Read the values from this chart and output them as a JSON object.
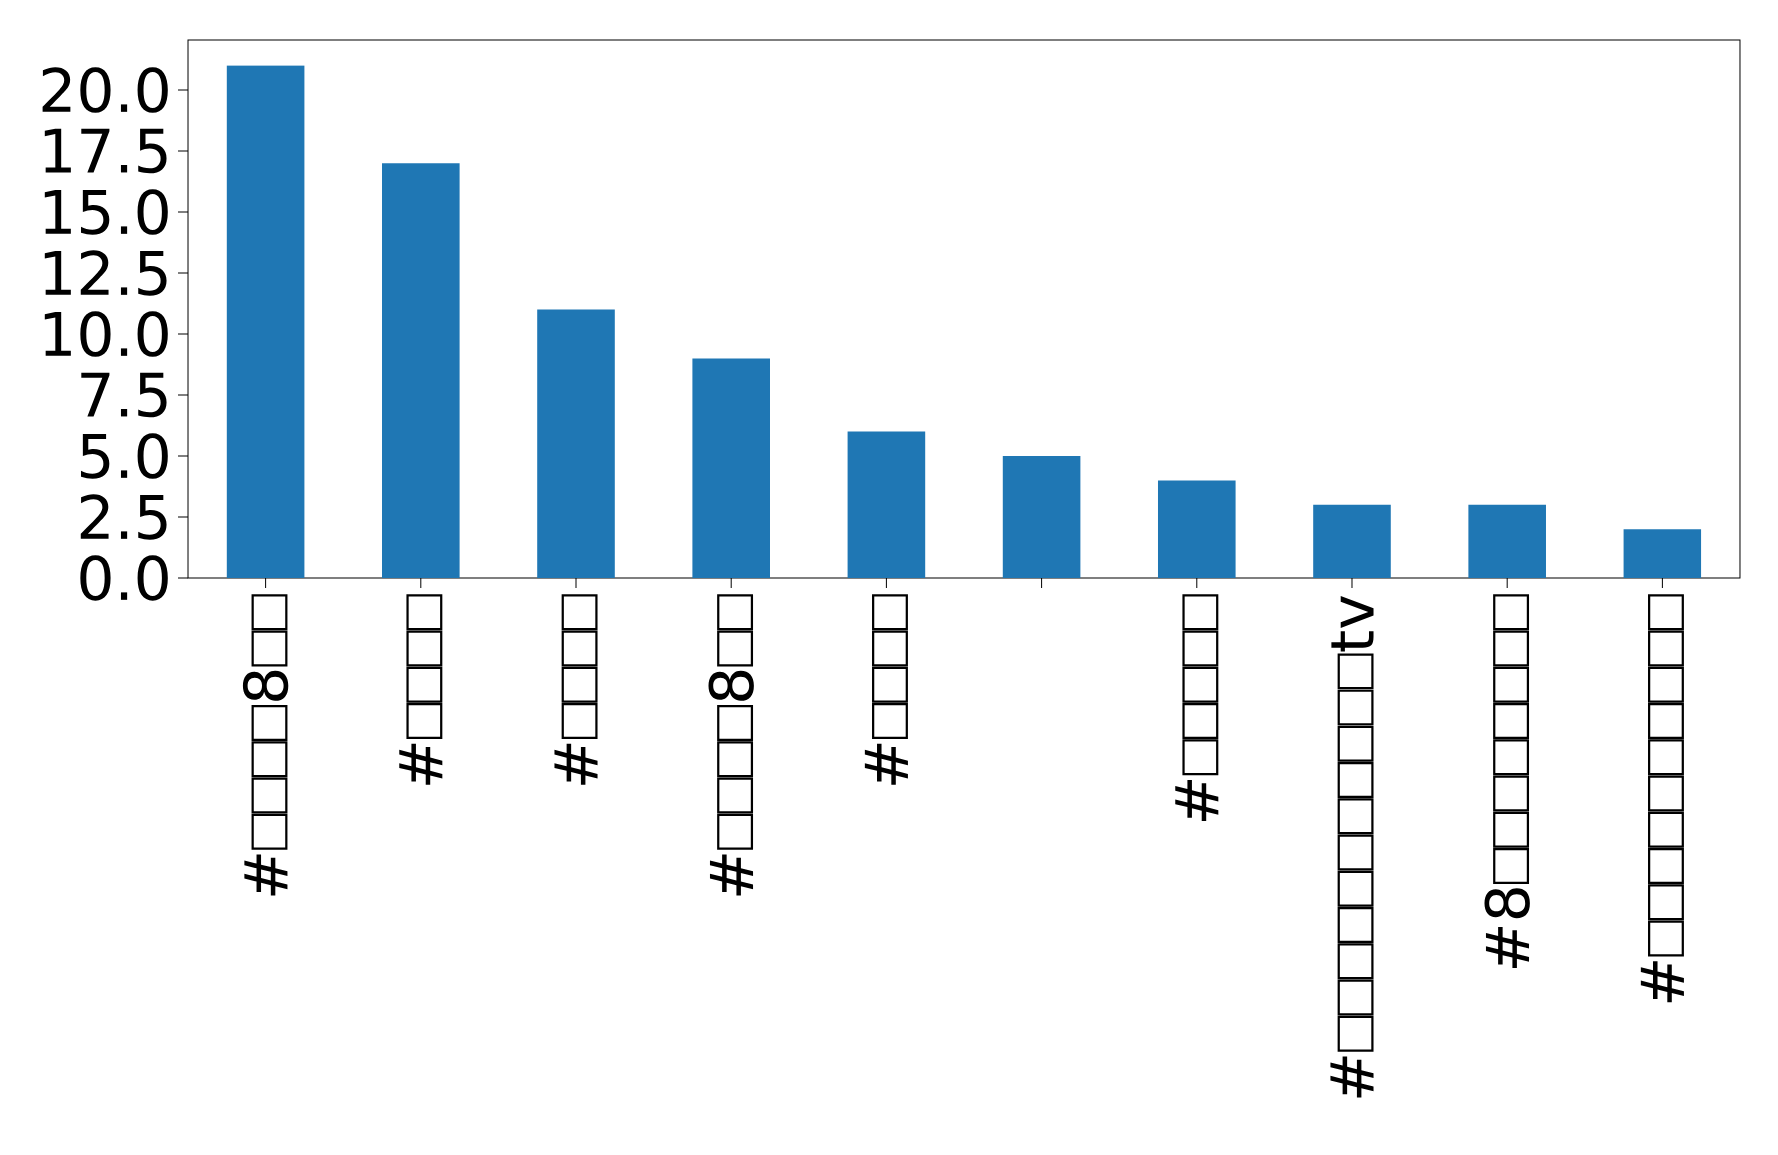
{
  "chart_data": {
    "type": "bar",
    "categories": [
      "#□□□□8□□",
      "#□□□□",
      "#□□□□",
      "#□□□□8□□",
      "#□□□□",
      null,
      "#□□□□□",
      "#□□□□□□□□□□□tv",
      "#8□□□□□□□□",
      "#□□□□□□□□□□"
    ],
    "values": [
      21,
      17,
      11,
      9,
      6,
      5,
      4,
      3,
      3,
      2
    ],
    "color": "#1f77b4",
    "ylim": [
      0,
      22.05
    ],
    "yticks": [
      {
        "value": 0,
        "label": "0.0"
      },
      {
        "value": 2.5,
        "label": "2.5"
      },
      {
        "value": 5,
        "label": "5.0"
      },
      {
        "value": 7.5,
        "label": "7.5"
      },
      {
        "value": 10,
        "label": "10.0"
      },
      {
        "value": 12.5,
        "label": "12.5"
      },
      {
        "value": 15,
        "label": "15.0"
      },
      {
        "value": 17.5,
        "label": "17.5"
      },
      {
        "value": 20,
        "label": "20.0"
      }
    ]
  }
}
